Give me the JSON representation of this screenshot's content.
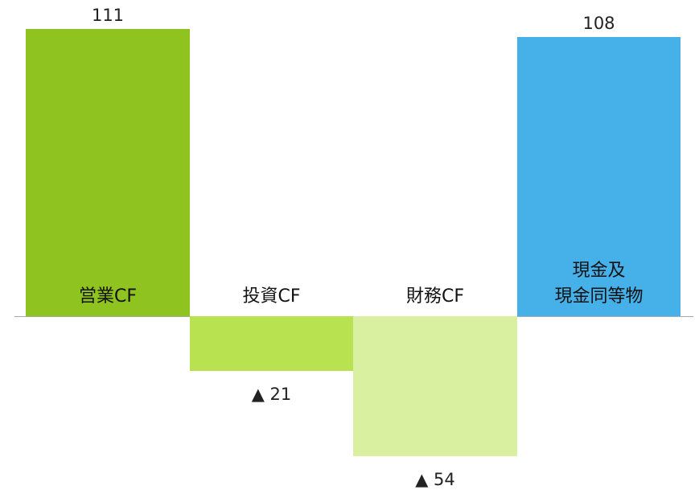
{
  "chart_data": {
    "type": "bar",
    "categories": [
      "営業CF",
      "投資CF",
      "財務CF",
      "現金及\n現金同等物"
    ],
    "values": [
      111,
      -21,
      -54,
      108
    ],
    "value_labels": [
      "111",
      "▲ 21",
      "▲ 54",
      "108"
    ],
    "colors": [
      "#8fc31f",
      "#b8e24f",
      "#d9f0a0",
      "#46b0e8"
    ]
  }
}
